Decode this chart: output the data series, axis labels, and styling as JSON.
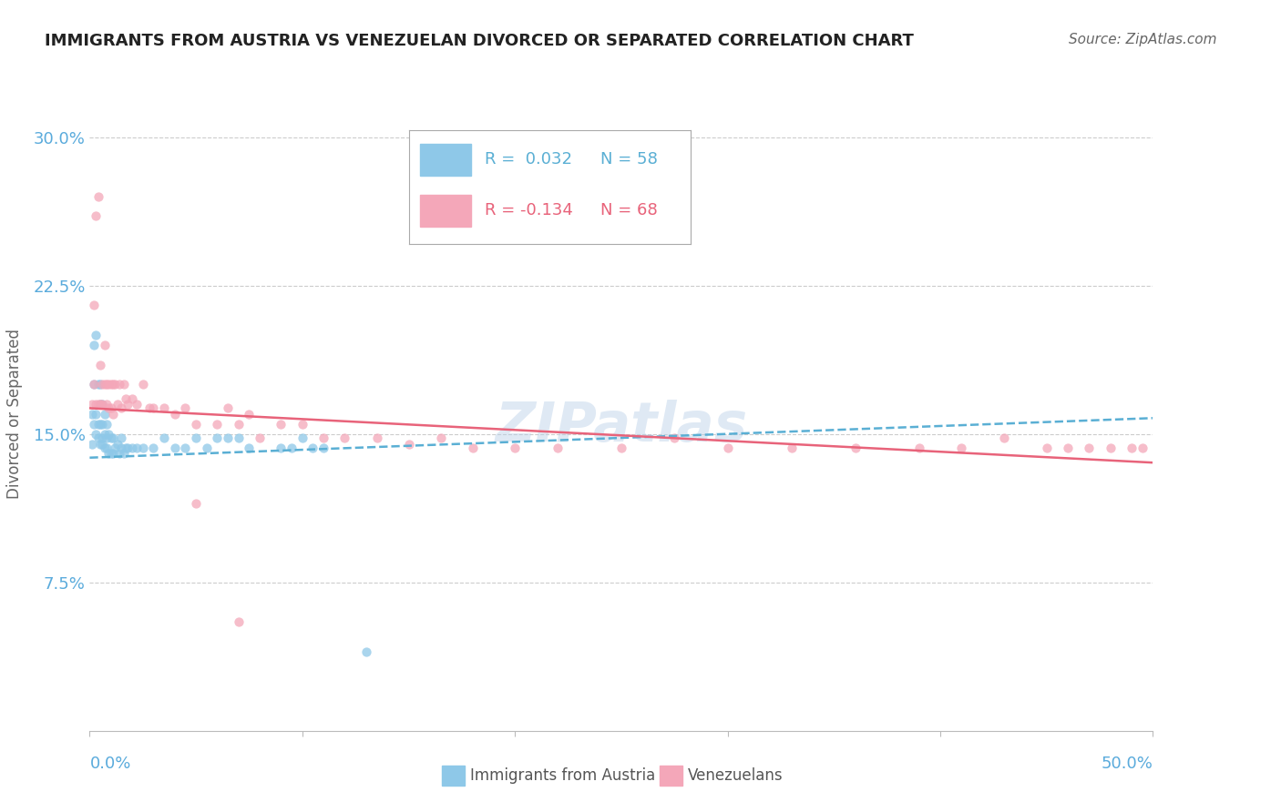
{
  "title": "IMMIGRANTS FROM AUSTRIA VS VENEZUELAN DIVORCED OR SEPARATED CORRELATION CHART",
  "source": "Source: ZipAtlas.com",
  "ylabel": "Divorced or Separated",
  "yticks": [
    0.0,
    0.075,
    0.15,
    0.225,
    0.3
  ],
  "ytick_labels": [
    "",
    "7.5%",
    "15.0%",
    "22.5%",
    "30.0%"
  ],
  "xlim": [
    0.0,
    0.5
  ],
  "ylim": [
    0.0,
    0.32
  ],
  "color_blue": "#8ec8e8",
  "color_pink": "#f4a7b9",
  "color_blue_line": "#5aafd4",
  "color_pink_line": "#e8637a",
  "color_axis_labels": "#5aabdc",
  "color_grid": "#cccccc",
  "watermark": "ZIPatlas",
  "legend_r1": "R =  0.032",
  "legend_n1": "N = 58",
  "legend_r2": "R = -0.134",
  "legend_n2": "N = 68",
  "blue_intercept": 0.138,
  "blue_slope": 0.04,
  "pink_intercept": 0.163,
  "pink_slope": -0.055,
  "blue_scatter_x": [
    0.001,
    0.001,
    0.002,
    0.002,
    0.002,
    0.003,
    0.003,
    0.003,
    0.004,
    0.004,
    0.004,
    0.005,
    0.005,
    0.005,
    0.005,
    0.006,
    0.006,
    0.006,
    0.006,
    0.007,
    0.007,
    0.007,
    0.008,
    0.008,
    0.008,
    0.009,
    0.009,
    0.01,
    0.01,
    0.011,
    0.011,
    0.012,
    0.013,
    0.014,
    0.015,
    0.015,
    0.016,
    0.017,
    0.018,
    0.02,
    0.022,
    0.025,
    0.03,
    0.035,
    0.04,
    0.045,
    0.05,
    0.055,
    0.06,
    0.065,
    0.07,
    0.075,
    0.09,
    0.095,
    0.1,
    0.105,
    0.11,
    0.13
  ],
  "blue_scatter_y": [
    0.145,
    0.16,
    0.155,
    0.175,
    0.195,
    0.15,
    0.16,
    0.2,
    0.148,
    0.155,
    0.175,
    0.145,
    0.155,
    0.165,
    0.175,
    0.145,
    0.148,
    0.155,
    0.165,
    0.143,
    0.15,
    0.16,
    0.143,
    0.148,
    0.155,
    0.14,
    0.15,
    0.14,
    0.148,
    0.14,
    0.148,
    0.143,
    0.145,
    0.14,
    0.143,
    0.148,
    0.14,
    0.143,
    0.143,
    0.143,
    0.143,
    0.143,
    0.143,
    0.148,
    0.143,
    0.143,
    0.148,
    0.143,
    0.148,
    0.148,
    0.148,
    0.143,
    0.143,
    0.143,
    0.148,
    0.143,
    0.143,
    0.04
  ],
  "pink_scatter_x": [
    0.001,
    0.002,
    0.002,
    0.003,
    0.003,
    0.004,
    0.004,
    0.005,
    0.005,
    0.006,
    0.006,
    0.007,
    0.007,
    0.008,
    0.008,
    0.009,
    0.009,
    0.01,
    0.01,
    0.011,
    0.011,
    0.012,
    0.013,
    0.014,
    0.015,
    0.016,
    0.017,
    0.018,
    0.02,
    0.022,
    0.025,
    0.028,
    0.03,
    0.035,
    0.04,
    0.045,
    0.05,
    0.06,
    0.065,
    0.07,
    0.075,
    0.08,
    0.09,
    0.1,
    0.11,
    0.12,
    0.135,
    0.15,
    0.165,
    0.18,
    0.2,
    0.22,
    0.25,
    0.275,
    0.3,
    0.33,
    0.36,
    0.39,
    0.41,
    0.43,
    0.45,
    0.46,
    0.47,
    0.48,
    0.49,
    0.495,
    0.05,
    0.07
  ],
  "pink_scatter_y": [
    0.165,
    0.175,
    0.215,
    0.165,
    0.26,
    0.165,
    0.27,
    0.165,
    0.185,
    0.165,
    0.175,
    0.175,
    0.195,
    0.165,
    0.175,
    0.163,
    0.175,
    0.163,
    0.175,
    0.16,
    0.175,
    0.175,
    0.165,
    0.175,
    0.163,
    0.175,
    0.168,
    0.165,
    0.168,
    0.165,
    0.175,
    0.163,
    0.163,
    0.163,
    0.16,
    0.163,
    0.155,
    0.155,
    0.163,
    0.155,
    0.16,
    0.148,
    0.155,
    0.155,
    0.148,
    0.148,
    0.148,
    0.145,
    0.148,
    0.143,
    0.143,
    0.143,
    0.143,
    0.148,
    0.143,
    0.143,
    0.143,
    0.143,
    0.143,
    0.148,
    0.143,
    0.143,
    0.143,
    0.143,
    0.143,
    0.143,
    0.115,
    0.055
  ]
}
